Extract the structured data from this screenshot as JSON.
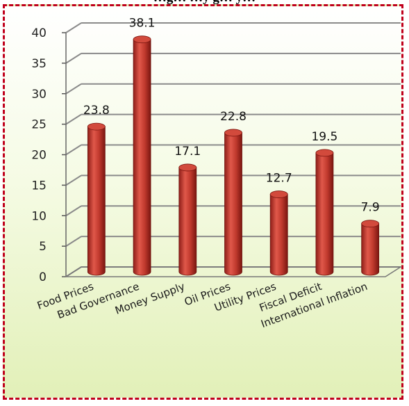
{
  "chart_data": {
    "type": "bar",
    "title": "…g… …y g… y…",
    "categories": [
      "Food Prices",
      "Bad Governance",
      "Money Supply",
      "Oil Prices",
      "Utility Prices",
      "Fiscal Deficit",
      "International Inflation"
    ],
    "values": [
      23.8,
      38.1,
      17.1,
      22.8,
      12.7,
      19.5,
      7.9
    ],
    "value_labels": [
      "23.8",
      "38.1",
      "17.1",
      "22.8",
      "12.7",
      "19.5",
      "7.9"
    ],
    "yticks": [
      "0",
      "5",
      "10",
      "15",
      "20",
      "25",
      "30",
      "35",
      "40"
    ],
    "ylim": [
      0,
      40
    ],
    "grid": true,
    "legend": "none",
    "bar_color": "#c0392b",
    "frame_color": "#c0001c"
  }
}
